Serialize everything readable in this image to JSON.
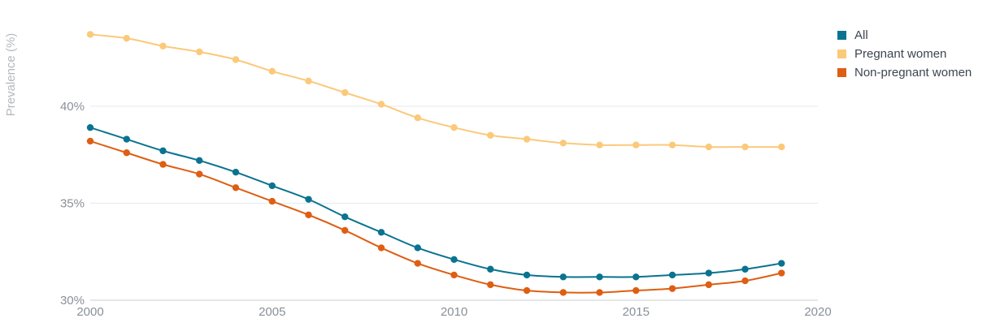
{
  "chart_data": {
    "type": "line",
    "ylabel": "Prevalence (%)",
    "xlabel": "",
    "x": [
      2000,
      2001,
      2002,
      2003,
      2004,
      2005,
      2006,
      2007,
      2008,
      2009,
      2010,
      2011,
      2012,
      2013,
      2014,
      2015,
      2016,
      2017,
      2018,
      2019
    ],
    "xlim": [
      2000,
      2020
    ],
    "ylim": [
      30,
      43.8
    ],
    "x_ticks": [
      2000,
      2005,
      2010,
      2015,
      2020
    ],
    "y_ticks": [
      30,
      35,
      40
    ],
    "y_tick_labels": [
      "30%",
      "35%",
      "40%"
    ],
    "grid": "horizontal",
    "legend_position": "top-right",
    "series": [
      {
        "name": "All",
        "color": "#0a7390",
        "values": [
          38.9,
          38.3,
          37.7,
          37.2,
          36.6,
          35.9,
          35.2,
          34.3,
          33.5,
          32.7,
          32.1,
          31.6,
          31.3,
          31.2,
          31.2,
          31.2,
          31.3,
          31.4,
          31.6,
          31.9
        ]
      },
      {
        "name": "Pregnant women",
        "color": "#fbc97a",
        "values": [
          43.7,
          43.5,
          43.1,
          42.8,
          42.4,
          41.8,
          41.3,
          40.7,
          40.1,
          39.4,
          38.9,
          38.5,
          38.3,
          38.1,
          38.0,
          38.0,
          38.0,
          37.9,
          37.9,
          37.9
        ]
      },
      {
        "name": "Non-pregnant women",
        "color": "#de5e13",
        "values": [
          38.2,
          37.6,
          37.0,
          36.5,
          35.8,
          35.1,
          34.4,
          33.6,
          32.7,
          31.9,
          31.3,
          30.8,
          30.5,
          30.4,
          30.4,
          30.5,
          30.6,
          30.8,
          31.0,
          31.4
        ]
      }
    ]
  }
}
